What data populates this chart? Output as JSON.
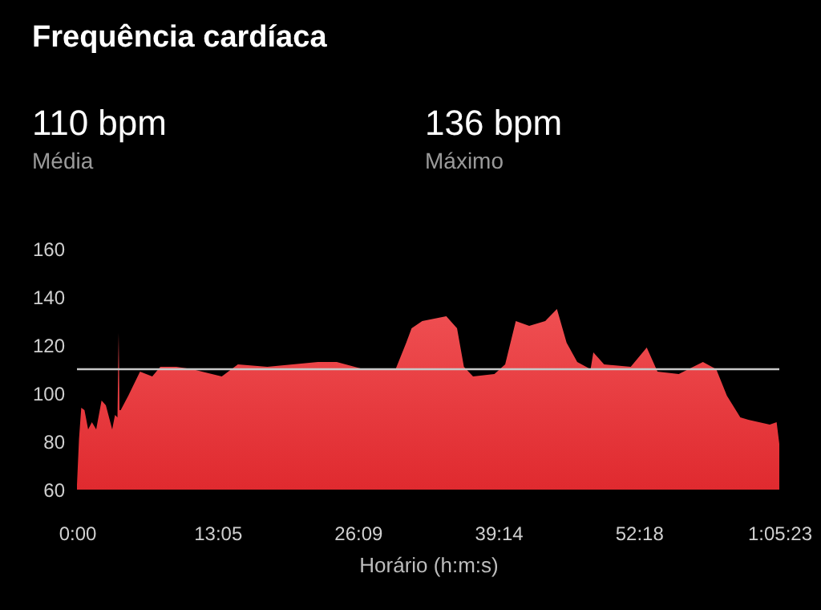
{
  "chart_data": {
    "type": "area",
    "title": "Frequência cardíaca",
    "xlabel": "Horário (h:m:s)",
    "annotations": [
      "110 bpm",
      "Média",
      "136 bpm",
      "Máximo"
    ],
    "x": [
      0,
      0.19,
      0.4,
      0.7,
      1.04,
      1.39,
      1.79,
      2.29,
      2.69,
      3.28,
      3.54,
      3.77,
      3.88,
      3.96,
      4.07,
      4.78,
      5.87,
      7.01,
      7.76,
      9.25,
      10.75,
      13.48,
      14.98,
      17.72,
      22.43,
      24.18,
      26.68,
      28.16,
      29.66,
      30.65,
      31.15,
      32.14,
      34.38,
      35.38,
      36.02,
      36.87,
      38.86,
      39.86,
      40.85,
      42.1,
      43.59,
      44.68,
      45.58,
      46.57,
      47.81,
      48.07,
      49.07,
      51.55,
      53.04,
      54.04,
      56.02,
      58.27,
      59.51,
      60.5,
      61.75,
      62.5,
      64.49,
      65.13,
      65.38
    ],
    "series": [
      {
        "color": "#ef4f52",
        "values": [
          62,
          81,
          94,
          93,
          85,
          88,
          85,
          97,
          95,
          85,
          91,
          90,
          125,
          93,
          93,
          99,
          109,
          107,
          111,
          111,
          110,
          107,
          112,
          111,
          113,
          113,
          110,
          110,
          110,
          121,
          127,
          130,
          132,
          127,
          111,
          107,
          108,
          112,
          130,
          128,
          130,
          135,
          121,
          113,
          110,
          117,
          112,
          111,
          119,
          109,
          108,
          113,
          110,
          99,
          90,
          89,
          87,
          88,
          79
        ]
      }
    ],
    "xlim": [
      0,
      65.38
    ],
    "xticks": [
      {
        "value": 0,
        "label": "0:00"
      },
      {
        "value": 13.08,
        "label": "13:05"
      },
      {
        "value": 26.15,
        "label": "26:09"
      },
      {
        "value": 39.23,
        "label": "39:14"
      },
      {
        "value": 52.3,
        "label": "52:18"
      },
      {
        "value": 65.38,
        "label": "1:05:23"
      }
    ],
    "ylim": [
      60,
      160
    ],
    "yticks": [
      60,
      80,
      100,
      120,
      140,
      160
    ],
    "ref_lines": [
      {
        "axis": "y",
        "value": 110,
        "label": null,
        "color": "#c8c8c8"
      }
    ],
    "grid": false
  }
}
